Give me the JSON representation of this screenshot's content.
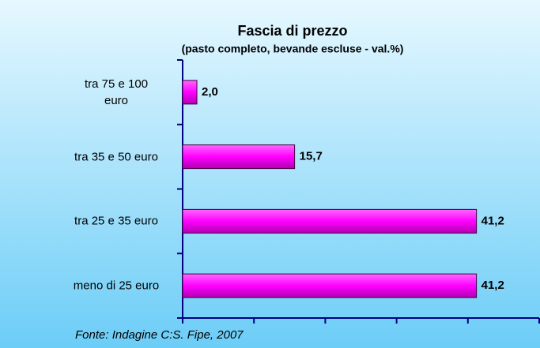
{
  "chart_data": {
    "type": "barh",
    "title": "Fascia di prezzo",
    "subtitle": "(pasto completo, bevande escluse - val.%)",
    "categories": [
      "tra 75 e 100\neuro",
      "tra 35 e 50 euro",
      "tra 25 e 35 euro",
      "meno di 25 euro"
    ],
    "values": [
      2.0,
      15.7,
      41.2,
      41.2
    ],
    "value_labels": [
      "2,0",
      "15,7",
      "41,2",
      "41,2"
    ],
    "color": "#ff00ff",
    "xlim": [
      0,
      50
    ],
    "xticks": [
      0,
      10,
      20,
      30,
      40,
      50
    ],
    "source": "Fonte: Indagine C:S. Fipe, 2007"
  }
}
